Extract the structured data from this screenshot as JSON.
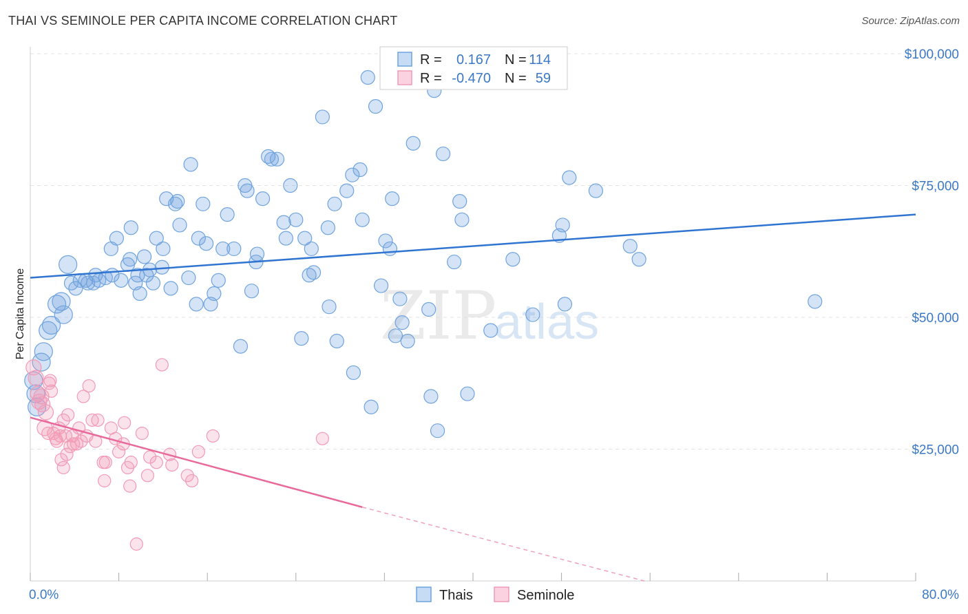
{
  "header": {
    "title": "THAI VS SEMINOLE PER CAPITA INCOME CORRELATION CHART",
    "source": "Source: ZipAtlas.com"
  },
  "watermark": {
    "zip": "ZIP",
    "atlas": "atlas"
  },
  "stats_legend": {
    "rows": [
      {
        "r_label": "R =",
        "r_value": "0.167",
        "n_label": "N =",
        "n_value": "114",
        "color": "#6fa3de"
      },
      {
        "r_label": "R =",
        "r_value": "-0.470",
        "n_label": "N =",
        "n_value": "59",
        "color": "#f29ab6"
      }
    ]
  },
  "bottom_legend": [
    {
      "label": "Thais",
      "color": "#6fa3de"
    },
    {
      "label": "Seminole",
      "color": "#f29ab6"
    }
  ],
  "chart_data": {
    "type": "scatter",
    "title": "THAI VS SEMINOLE PER CAPITA INCOME CORRELATION CHART",
    "xlabel": "",
    "ylabel": "Per Capita Income",
    "xlim": [
      0,
      80
    ],
    "ylim": [
      0,
      100000
    ],
    "x_tick_labels": [
      "0.0%",
      "80.0%"
    ],
    "y_ticks": [
      25000,
      50000,
      75000,
      100000
    ],
    "y_tick_labels": [
      "$25,000",
      "$50,000",
      "$75,000",
      "$100,000"
    ],
    "grid": "horizontal dashed",
    "legend_placement": "top-center",
    "series": [
      {
        "name": "Thais",
        "color": "#6fa3de",
        "trend": {
          "x": [
            0,
            80
          ],
          "y": [
            57500,
            69500
          ]
        },
        "points": [
          [
            0.3,
            38000
          ],
          [
            0.5,
            35500
          ],
          [
            0.6,
            33000
          ],
          [
            1.0,
            41500
          ],
          [
            1.2,
            43500
          ],
          [
            1.6,
            47500
          ],
          [
            1.9,
            48500
          ],
          [
            2.4,
            52500
          ],
          [
            2.8,
            53000
          ],
          [
            3.0,
            50500
          ],
          [
            3.4,
            60000
          ],
          [
            3.7,
            56500
          ],
          [
            4.1,
            55500
          ],
          [
            4.5,
            57000
          ],
          [
            5.0,
            57000
          ],
          [
            5.2,
            56500
          ],
          [
            5.7,
            56500
          ],
          [
            5.9,
            58000
          ],
          [
            6.2,
            57000
          ],
          [
            6.8,
            57500
          ],
          [
            7.3,
            63000
          ],
          [
            7.4,
            58000
          ],
          [
            7.8,
            65000
          ],
          [
            8.2,
            57000
          ],
          [
            8.8,
            60000
          ],
          [
            9.0,
            61000
          ],
          [
            9.1,
            67000
          ],
          [
            9.5,
            56500
          ],
          [
            9.7,
            58000
          ],
          [
            9.9,
            54500
          ],
          [
            10.3,
            61500
          ],
          [
            10.5,
            58000
          ],
          [
            10.8,
            59000
          ],
          [
            11.1,
            56500
          ],
          [
            11.4,
            65000
          ],
          [
            11.9,
            59500
          ],
          [
            12.0,
            63000
          ],
          [
            12.3,
            72500
          ],
          [
            12.7,
            55500
          ],
          [
            13.1,
            71500
          ],
          [
            13.3,
            72000
          ],
          [
            13.5,
            67500
          ],
          [
            14.3,
            57500
          ],
          [
            14.5,
            79000
          ],
          [
            15.0,
            52500
          ],
          [
            15.2,
            65000
          ],
          [
            15.6,
            71500
          ],
          [
            15.9,
            64000
          ],
          [
            16.3,
            52500
          ],
          [
            16.6,
            54500
          ],
          [
            17.0,
            57000
          ],
          [
            17.4,
            63000
          ],
          [
            17.8,
            69500
          ],
          [
            18.4,
            63000
          ],
          [
            19.0,
            44500
          ],
          [
            19.4,
            75000
          ],
          [
            19.6,
            74000
          ],
          [
            20.0,
            55000
          ],
          [
            20.4,
            60500
          ],
          [
            20.5,
            62000
          ],
          [
            21.0,
            72500
          ],
          [
            21.5,
            80500
          ],
          [
            21.8,
            80000
          ],
          [
            22.3,
            80000
          ],
          [
            22.9,
            68000
          ],
          [
            23.1,
            65000
          ],
          [
            23.5,
            75000
          ],
          [
            24.0,
            68500
          ],
          [
            24.5,
            46000
          ],
          [
            24.8,
            65000
          ],
          [
            25.2,
            58000
          ],
          [
            25.4,
            63000
          ],
          [
            25.6,
            58500
          ],
          [
            26.4,
            88000
          ],
          [
            26.9,
            67000
          ],
          [
            27.0,
            52000
          ],
          [
            27.5,
            71500
          ],
          [
            27.7,
            45500
          ],
          [
            28.6,
            74000
          ],
          [
            29.1,
            77000
          ],
          [
            29.2,
            39500
          ],
          [
            29.8,
            78000
          ],
          [
            30.0,
            68500
          ],
          [
            30.5,
            95500
          ],
          [
            30.8,
            33000
          ],
          [
            31.2,
            90000
          ],
          [
            31.7,
            56000
          ],
          [
            32.1,
            64500
          ],
          [
            32.5,
            63000
          ],
          [
            32.7,
            72500
          ],
          [
            33.0,
            46500
          ],
          [
            33.4,
            53500
          ],
          [
            33.6,
            49000
          ],
          [
            34.1,
            45500
          ],
          [
            34.6,
            83000
          ],
          [
            36.0,
            51500
          ],
          [
            36.2,
            35000
          ],
          [
            36.5,
            93000
          ],
          [
            36.8,
            28500
          ],
          [
            37.3,
            81000
          ],
          [
            38.3,
            60500
          ],
          [
            38.8,
            72000
          ],
          [
            39.0,
            68500
          ],
          [
            39.5,
            35500
          ],
          [
            41.6,
            47500
          ],
          [
            43.6,
            61000
          ],
          [
            45.4,
            50500
          ],
          [
            47.8,
            65500
          ],
          [
            48.1,
            67500
          ],
          [
            48.3,
            52500
          ],
          [
            48.7,
            76500
          ],
          [
            51.1,
            74000
          ],
          [
            54.2,
            63500
          ],
          [
            55.0,
            61000
          ],
          [
            70.9,
            53000
          ]
        ]
      },
      {
        "name": "Seminole",
        "color": "#f29ab6",
        "trend": {
          "x": [
            0,
            30
          ],
          "y": [
            31000,
            14000
          ]
        },
        "trend_extension": {
          "x": [
            30,
            55.5
          ],
          "y": [
            14000,
            0
          ]
        },
        "points": [
          [
            0.3,
            40500
          ],
          [
            0.5,
            38500
          ],
          [
            0.7,
            35500
          ],
          [
            0.8,
            34000
          ],
          [
            1.0,
            35000
          ],
          [
            1.1,
            33500
          ],
          [
            1.3,
            29000
          ],
          [
            1.4,
            32000
          ],
          [
            1.6,
            28000
          ],
          [
            1.7,
            37500
          ],
          [
            1.8,
            38000
          ],
          [
            1.9,
            36000
          ],
          [
            2.1,
            28000
          ],
          [
            2.3,
            27000
          ],
          [
            2.4,
            26500
          ],
          [
            2.6,
            29000
          ],
          [
            2.7,
            27500
          ],
          [
            2.8,
            23000
          ],
          [
            3.0,
            30500
          ],
          [
            3.0,
            21500
          ],
          [
            3.2,
            27500
          ],
          [
            3.3,
            24000
          ],
          [
            3.4,
            31500
          ],
          [
            3.6,
            25500
          ],
          [
            3.8,
            27500
          ],
          [
            3.9,
            26000
          ],
          [
            4.2,
            26000
          ],
          [
            4.4,
            29000
          ],
          [
            4.6,
            26500
          ],
          [
            4.8,
            35000
          ],
          [
            5.1,
            27500
          ],
          [
            5.3,
            37000
          ],
          [
            5.6,
            30500
          ],
          [
            5.9,
            26500
          ],
          [
            6.1,
            30500
          ],
          [
            6.6,
            22500
          ],
          [
            6.7,
            19000
          ],
          [
            6.8,
            22500
          ],
          [
            7.3,
            29000
          ],
          [
            7.7,
            27000
          ],
          [
            8.0,
            24500
          ],
          [
            8.4,
            26000
          ],
          [
            8.5,
            30000
          ],
          [
            8.8,
            21500
          ],
          [
            9.0,
            18000
          ],
          [
            9.1,
            22500
          ],
          [
            9.6,
            7000
          ],
          [
            10.1,
            28000
          ],
          [
            10.6,
            20000
          ],
          [
            10.8,
            23500
          ],
          [
            11.4,
            22500
          ],
          [
            11.9,
            41000
          ],
          [
            12.6,
            24000
          ],
          [
            12.8,
            22000
          ],
          [
            14.2,
            20000
          ],
          [
            14.6,
            19000
          ],
          [
            15.2,
            24500
          ],
          [
            16.5,
            27500
          ],
          [
            26.4,
            27000
          ]
        ]
      }
    ]
  }
}
